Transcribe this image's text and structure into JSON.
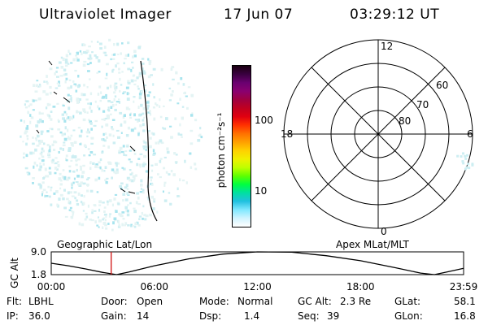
{
  "header": {
    "instrument": "Ultraviolet Imager",
    "date": "17 Jun 07",
    "time": "03:29:12 UT"
  },
  "colorbar": {
    "label": "photon cm⁻²s⁻¹",
    "ticks": [
      "100",
      "10"
    ],
    "colors": [
      "#1a0010",
      "#3a0040",
      "#6a0070",
      "#8a0070",
      "#a00040",
      "#c00020",
      "#e00010",
      "#ff3000",
      "#ff7000",
      "#ffa000",
      "#ffd000",
      "#f0f000",
      "#c0ff00",
      "#60ff00",
      "#00ff40",
      "#00e0a0",
      "#20c0e0",
      "#80e8ff",
      "#d0f4ff",
      "#ffffff"
    ]
  },
  "panels": {
    "left_label": "Geographic Lat/Lon",
    "right_label": "Apex MLat/MLT"
  },
  "polar": {
    "mlt_labels": {
      "top": "12",
      "left": "18",
      "right": "6",
      "bottom": "0"
    },
    "lat_labels": [
      "60",
      "70",
      "80"
    ]
  },
  "chart_data": {
    "type": "line",
    "ylabel": "GC Alt",
    "yticks": [
      "9.0",
      "1.8"
    ],
    "ylim": [
      1.8,
      9.0
    ],
    "xticks": [
      "00:00",
      "06:00",
      "12:00",
      "18:00",
      "23:59"
    ],
    "xlim_hours": [
      0,
      24
    ],
    "current_time_hours": 3.49,
    "orbit_points": [
      {
        "t": 0.0,
        "alt": 5.4
      },
      {
        "t": 1.0,
        "alt": 4.6
      },
      {
        "t": 2.0,
        "alt": 3.6
      },
      {
        "t": 3.0,
        "alt": 2.5
      },
      {
        "t": 3.8,
        "alt": 1.8
      },
      {
        "t": 4.5,
        "alt": 2.6
      },
      {
        "t": 6.0,
        "alt": 4.6
      },
      {
        "t": 8.0,
        "alt": 6.8
      },
      {
        "t": 10.0,
        "alt": 8.3
      },
      {
        "t": 12.0,
        "alt": 9.0
      },
      {
        "t": 14.0,
        "alt": 8.9
      },
      {
        "t": 16.0,
        "alt": 7.8
      },
      {
        "t": 18.0,
        "alt": 6.2
      },
      {
        "t": 20.0,
        "alt": 4.0
      },
      {
        "t": 21.5,
        "alt": 2.3
      },
      {
        "t": 22.3,
        "alt": 1.8
      },
      {
        "t": 23.0,
        "alt": 2.6
      },
      {
        "t": 24.0,
        "alt": 3.8
      }
    ]
  },
  "footer": {
    "flt_label": "Flt:",
    "flt_value": "LBHL",
    "ip_label": "IP:",
    "ip_value": "36.0",
    "door_label": "Door:",
    "door_value": "Open",
    "gain_label": "Gain:",
    "gain_value": "14",
    "mode_label": "Mode:",
    "mode_value": "Normal",
    "dsp_label": "Dsp:",
    "dsp_value": "1.4",
    "gcalt_label": "GC Alt:",
    "gcalt_value": "2.3 Re",
    "seq_label": "Seq:",
    "seq_value": "39",
    "glat_label": "GLat:",
    "glat_value": "58.1",
    "glon_label": "GLon:",
    "glon_value": "16.8"
  }
}
